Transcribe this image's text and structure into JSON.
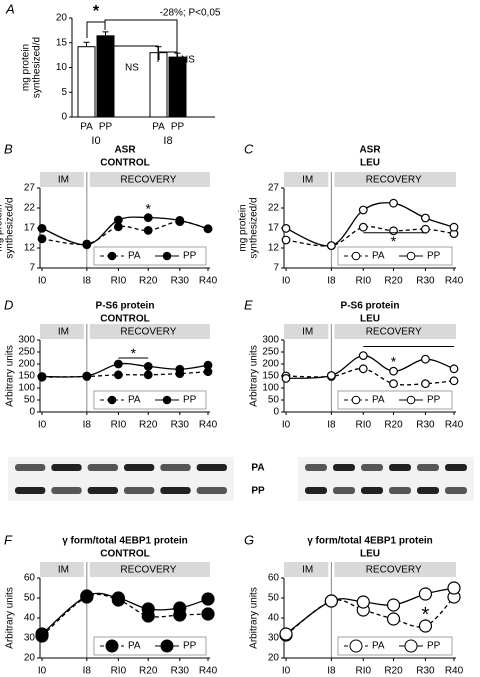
{
  "chart_data": [
    {
      "type": "bar",
      "panel": "A",
      "ylabel": [
        "mg protein",
        "synthesized/d"
      ],
      "categories": [
        "I0",
        "I8"
      ],
      "series": [
        {
          "name": "PA",
          "color": "#ffffff",
          "values": [
            14.2,
            13.0
          ],
          "errors": [
            0.9,
            1.2
          ]
        },
        {
          "name": "PP",
          "color": "#000000",
          "values": [
            16.4,
            12.1
          ],
          "errors": [
            0.8,
            0.8
          ]
        }
      ],
      "ylim": [
        0,
        20
      ],
      "yticks": [
        0,
        5,
        10,
        15,
        20
      ],
      "annotations": [
        "*",
        "-28%; P<0,05",
        "NS",
        "NS"
      ]
    },
    {
      "type": "line",
      "panel": "B",
      "title": [
        "ASR",
        "CONTROL"
      ],
      "ylabel": [
        "mg protein",
        "synthesized/d"
      ],
      "phases": [
        "IM",
        "RECOVERY"
      ],
      "categories": [
        "I0",
        "I8",
        "RI0",
        "R20",
        "R30",
        "R40"
      ],
      "series": [
        {
          "name": "PA",
          "color": "#000000",
          "linestyle": "dashed",
          "marker": "filled",
          "values": [
            14.3,
            13.0,
            17.3,
            16.4,
            18.6,
            16.8
          ]
        },
        {
          "name": "PP",
          "color": "#000000",
          "linestyle": "solid",
          "marker": "filled",
          "values": [
            16.9,
            12.8,
            19.0,
            19.6,
            18.9,
            16.8
          ]
        }
      ],
      "ylim": [
        7,
        27
      ],
      "yticks": [
        7,
        12,
        17,
        22,
        27
      ],
      "annotations": [
        "*"
      ]
    },
    {
      "type": "line",
      "panel": "C",
      "title": [
        "ASR",
        "LEU"
      ],
      "ylabel": [
        "mg protein",
        "synthesized/d"
      ],
      "phases": [
        "IM",
        "RECOVERY"
      ],
      "categories": [
        "I0",
        "I8",
        "RI0",
        "R20",
        "R30",
        "R40"
      ],
      "series": [
        {
          "name": "PA",
          "color": "#000000",
          "linestyle": "dashed",
          "marker": "open",
          "values": [
            14.0,
            12.6,
            17.2,
            16.3,
            16.7,
            15.6
          ]
        },
        {
          "name": "PP",
          "color": "#000000",
          "linestyle": "solid",
          "marker": "open",
          "values": [
            16.9,
            12.6,
            21.5,
            23.2,
            19.5,
            17.2
          ]
        }
      ],
      "ylim": [
        7,
        27
      ],
      "yticks": [
        7,
        12,
        17,
        22,
        27
      ],
      "annotations": [
        "*"
      ]
    },
    {
      "type": "line",
      "panel": "D",
      "title": [
        "P-S6 protein",
        "CONTROL"
      ],
      "ylabel": [
        "Arbitrary units"
      ],
      "phases": [
        "IM",
        "RECOVERY"
      ],
      "categories": [
        "I0",
        "I8",
        "RI0",
        "R20",
        "R30",
        "R40"
      ],
      "series": [
        {
          "name": "PA",
          "color": "#000000",
          "linestyle": "dashed",
          "marker": "filled",
          "values": [
            145,
            148,
            155,
            155,
            160,
            168
          ]
        },
        {
          "name": "PP",
          "color": "#000000",
          "linestyle": "solid",
          "marker": "filled",
          "values": [
            148,
            150,
            200,
            190,
            178,
            195
          ]
        }
      ],
      "ylim": [
        0,
        300
      ],
      "yticks": [
        0,
        50,
        100,
        150,
        200,
        250,
        300
      ],
      "annotations": [
        "*"
      ]
    },
    {
      "type": "line",
      "panel": "E",
      "title": [
        "P-S6 protein",
        "LEU"
      ],
      "ylabel": [
        "Arbitrary units"
      ],
      "phases": [
        "IM",
        "RECOVERY"
      ],
      "categories": [
        "I0",
        "I8",
        "RI0",
        "R20",
        "R30",
        "R40"
      ],
      "series": [
        {
          "name": "PA",
          "color": "#000000",
          "linestyle": "dashed",
          "marker": "open",
          "values": [
            150,
            148,
            180,
            118,
            118,
            130
          ]
        },
        {
          "name": "PP",
          "color": "#000000",
          "linestyle": "solid",
          "marker": "open",
          "values": [
            140,
            152,
            235,
            170,
            220,
            180
          ]
        }
      ],
      "ylim": [
        0,
        300
      ],
      "yticks": [
        0,
        50,
        100,
        150,
        200,
        250,
        300
      ],
      "annotations": [
        "*"
      ]
    },
    {
      "type": "line",
      "panel": "F",
      "title": [
        "γ form/total 4EBP1 protein",
        "CONTROL"
      ],
      "ylabel": [
        "Arbitrary units"
      ],
      "phases": [
        "IM",
        "RECOVERY"
      ],
      "categories": [
        "I0",
        "I8",
        "RI0",
        "R20",
        "R30",
        "R40"
      ],
      "series": [
        {
          "name": "PA",
          "color": "#000000",
          "linestyle": "dashed",
          "marker": "filled",
          "values": [
            31,
            50.5,
            49,
            41,
            41.5,
            42
          ]
        },
        {
          "name": "PP",
          "color": "#000000",
          "linestyle": "solid",
          "marker": "filled",
          "values": [
            32,
            51,
            50,
            44.5,
            45,
            49.5
          ]
        }
      ],
      "ylim": [
        20,
        60
      ],
      "yticks": [
        20,
        30,
        40,
        50,
        60
      ]
    },
    {
      "type": "line",
      "panel": "G",
      "title": [
        "γ form/total 4EBP1 protein",
        "LEU"
      ],
      "ylabel": [
        "Arbitrary units"
      ],
      "phases": [
        "IM",
        "RECOVERY"
      ],
      "categories": [
        "I0",
        "I8",
        "RI0",
        "R20",
        "R30",
        "R40"
      ],
      "series": [
        {
          "name": "PA",
          "color": "#000000",
          "linestyle": "dashed",
          "marker": "open",
          "values": [
            31.5,
            48.5,
            44,
            39.5,
            36,
            50.5
          ]
        },
        {
          "name": "PP",
          "color": "#000000",
          "linestyle": "solid",
          "marker": "open",
          "values": [
            32,
            48.5,
            48,
            46.5,
            52,
            55
          ]
        }
      ],
      "ylim": [
        20,
        60
      ],
      "yticks": [
        20,
        30,
        40,
        50,
        60
      ],
      "annotations": [
        "*"
      ]
    }
  ],
  "blot": {
    "rows": [
      "PA",
      "PP"
    ]
  }
}
